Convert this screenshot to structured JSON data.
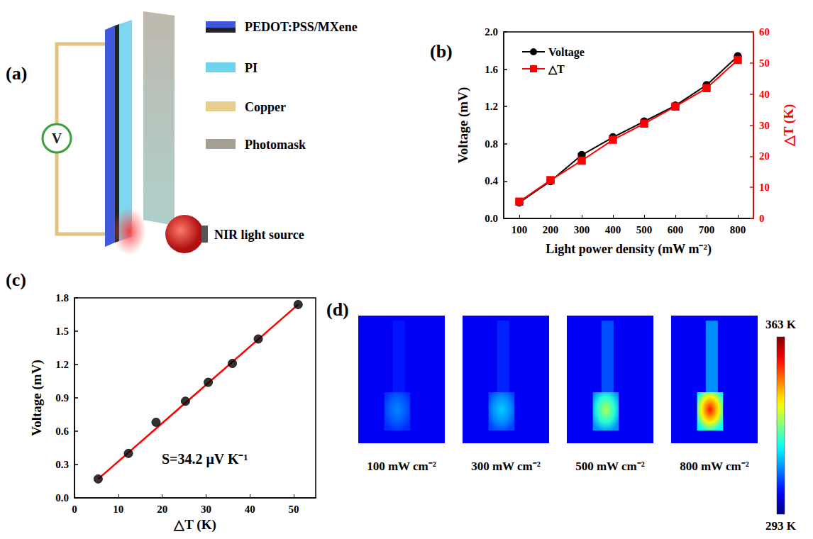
{
  "diagram": {
    "panel": "(a)",
    "meter": "V",
    "layers": [
      "PEDOT:PSS/MXene",
      "PI",
      "Copper",
      "Photomask"
    ],
    "light_source": "NIR light source"
  },
  "chart_data": [
    {
      "panel": "(b)",
      "type": "line",
      "x_label": "Light power density (mW m⁻²)",
      "categories": [
        100,
        200,
        300,
        400,
        500,
        600,
        700,
        800
      ],
      "series": [
        {
          "name": "Voltage",
          "color": "#000000",
          "marker": "circle",
          "values": [
            0.17,
            0.4,
            0.68,
            0.87,
            1.04,
            1.21,
            1.43,
            1.74
          ]
        },
        {
          "name": "△T",
          "color": "#ff0000",
          "marker": "square",
          "axis": "y2",
          "values": [
            5.4,
            12.3,
            18.6,
            25.3,
            30.5,
            36.0,
            41.9,
            51.0
          ]
        }
      ],
      "y_label": "Voltage (mV)",
      "y2_label": "△T (K)",
      "ylim": [
        0,
        2
      ],
      "yticks": [
        {
          "value": 0,
          "label": "0.0"
        },
        0.4,
        0.8,
        1.2,
        1.6,
        {
          "value": 2,
          "label": "2.0"
        }
      ],
      "y2lim": [
        0,
        60
      ],
      "y2ticks": [
        0,
        10,
        20,
        30,
        40,
        50,
        60
      ],
      "legend": "upper left",
      "grid": false
    },
    {
      "panel": "(c)",
      "type": "scatter",
      "x_label": "△T (K)",
      "y_label": "Voltage (mV)",
      "xlim": [
        0,
        55
      ],
      "xticks": [
        0,
        10,
        20,
        30,
        40,
        50
      ],
      "ylim": [
        0,
        1.8
      ],
      "yticks": [
        {
          "value": 0,
          "label": "0.0"
        },
        0.3,
        0.6,
        0.9,
        1.2,
        1.5,
        1.8
      ],
      "series": [
        {
          "type": "scatter",
          "color": "#000000",
          "marker": "circle",
          "x": [
            5.4,
            12.3,
            18.6,
            25.3,
            30.5,
            36.0,
            41.9,
            51.0
          ],
          "values": [
            0.17,
            0.4,
            0.68,
            0.87,
            1.04,
            1.21,
            1.43,
            1.74
          ]
        },
        {
          "type": "line",
          "color": "#ff0000",
          "line_style": "solid",
          "x": [
            5.4,
            51.0
          ],
          "values": [
            0.17,
            1.74
          ]
        }
      ],
      "annotations": [
        "S=34.2 μV K⁻¹"
      ],
      "grid": false
    }
  ],
  "thermal_images": {
    "panel": "(d)",
    "background_temperature": 301,
    "images": [
      {
        "label": "100 mW cm⁻²",
        "max_temperature": 311
      },
      {
        "label": "300 mW cm⁻²",
        "max_temperature": 316
      },
      {
        "label": "500 mW cm⁻²",
        "max_temperature": 331
      },
      {
        "label": "800 mW cm⁻²",
        "max_temperature": 353
      }
    ],
    "colorbar": {
      "range": [
        293,
        363
      ],
      "ticks": [
        {
          "value": 293,
          "label": "293 K"
        },
        {
          "value": 363,
          "label": "363 K"
        }
      ]
    }
  }
}
